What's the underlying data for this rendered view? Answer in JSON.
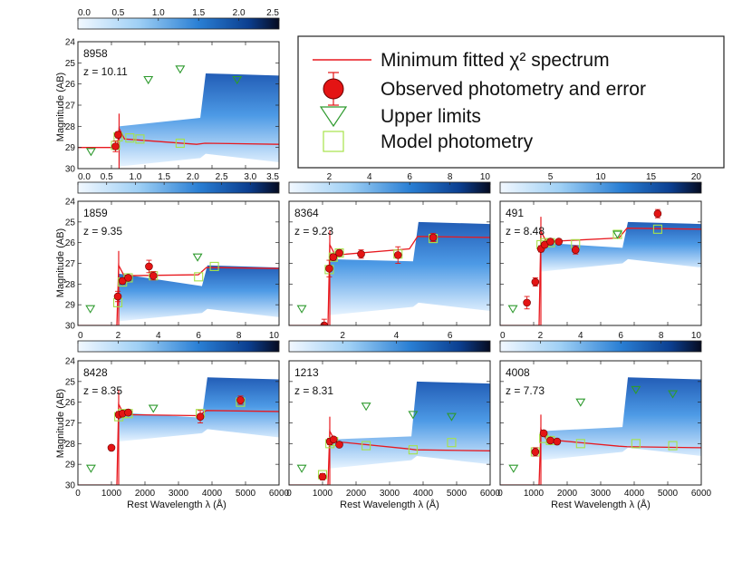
{
  "figure": {
    "y_axis_label": "Magnitude (AB)",
    "x_axis_label": "Rest Wavelength λ (Å)"
  },
  "legend": {
    "items": [
      {
        "kind": "line",
        "label": "Minimum fitted χ² spectrum"
      },
      {
        "kind": "filled-circle",
        "label": "Observed photometry and error"
      },
      {
        "kind": "down-triangle",
        "label": "Upper limits"
      },
      {
        "kind": "open-square",
        "label": "Model photometry"
      }
    ]
  },
  "colors": {
    "fit_line": "#e8191f",
    "observed": "#e41414",
    "upper_limit": "#2e9a2e",
    "model_phot": "#a6e24a",
    "colorbar_low": "#eaf4ff",
    "colorbar_high": "#0b1230"
  },
  "chart_data": [
    {
      "type": "scatter",
      "id": "8958",
      "z_label": "z = 10.11",
      "colorbar": {
        "range": [
          0,
          2.5
        ],
        "ticks": [
          "0.0",
          "0.5",
          "1.0",
          "1.5",
          "2.0",
          "2.5"
        ]
      },
      "xlim": [
        0,
        6000
      ],
      "ylim": [
        30,
        24
      ],
      "xticks": [],
      "yticks": [
        24,
        25,
        26,
        27,
        28,
        29,
        30
      ],
      "break": {
        "wave": 1228,
        "faint_mag": 29.0,
        "fan": [
          28.0,
          29.9
        ],
        "break2": 3650,
        "fan2": [
          25.5,
          26.4
        ],
        "fit_blue": 28.6,
        "fit_red": 28.8
      },
      "observed": [
        {
          "x": 1120,
          "y": 28.95,
          "err": 0.25
        },
        {
          "x": 1200,
          "y": 28.4,
          "err": 0.15
        }
      ],
      "upper_limits": [
        {
          "x": 390,
          "y": 29.2
        },
        {
          "x": 2100,
          "y": 25.8
        },
        {
          "x": 3050,
          "y": 25.3
        },
        {
          "x": 4750,
          "y": 25.8
        }
      ],
      "model": [
        {
          "x": 1120,
          "y": 28.9
        },
        {
          "x": 1200,
          "y": 28.5
        },
        {
          "x": 1550,
          "y": 28.55
        },
        {
          "x": 1850,
          "y": 28.6
        },
        {
          "x": 3050,
          "y": 28.8
        }
      ]
    },
    {
      "type": "scatter",
      "id": "1859",
      "z_label": "z = 9.35",
      "colorbar": {
        "range": [
          0,
          3.5
        ],
        "ticks": [
          "0.0",
          "0.5",
          "1.0",
          "1.5",
          "2.0",
          "2.5",
          "3.0",
          "3.5"
        ]
      },
      "xlim": [
        0,
        6000
      ],
      "ylim": [
        30,
        24
      ],
      "xticks": [],
      "yticks": [
        24,
        25,
        26,
        27,
        28,
        29,
        30
      ],
      "break": {
        "wave": 1216,
        "faint_mag": 30.0,
        "fan": [
          27.5,
          29.8
        ],
        "break2": 3700,
        "fan2": [
          27.1,
          27.9
        ],
        "fit_blue": 27.6,
        "fit_red": 27.2
      },
      "observed": [
        {
          "x": 1190,
          "y": 28.6,
          "err": 0.25
        },
        {
          "x": 1330,
          "y": 27.85,
          "err": 0.15
        },
        {
          "x": 1500,
          "y": 27.7,
          "err": 0.1
        },
        {
          "x": 2120,
          "y": 27.15,
          "err": 0.3
        },
        {
          "x": 2250,
          "y": 27.6,
          "err": 0.2
        }
      ],
      "upper_limits": [
        {
          "x": 370,
          "y": 29.2
        },
        {
          "x": 3570,
          "y": 26.7
        }
      ],
      "model": [
        {
          "x": 1190,
          "y": 28.9
        },
        {
          "x": 1330,
          "y": 27.9
        },
        {
          "x": 1500,
          "y": 27.7
        },
        {
          "x": 2250,
          "y": 27.6
        },
        {
          "x": 3600,
          "y": 27.65
        },
        {
          "x": 4070,
          "y": 27.15
        }
      ]
    },
    {
      "type": "scatter",
      "id": "8364",
      "z_label": "z = 9.23",
      "colorbar": {
        "range": [
          0,
          10
        ],
        "ticks": [
          "2",
          "4",
          "6",
          "8",
          "10"
        ]
      },
      "xlim": [
        0,
        6000
      ],
      "ylim": [
        30,
        24
      ],
      "xticks": [],
      "yticks": [],
      "break": {
        "wave": 1216,
        "faint_mag": 30.0,
        "fan": [
          26.8,
          29.5
        ],
        "break2": 3700,
        "fan2": [
          25.0,
          26.2
        ],
        "fit_blue": 26.6,
        "fit_red": 25.7
      },
      "observed": [
        {
          "x": 1050,
          "y": 30.0,
          "err": 0.3
        },
        {
          "x": 1200,
          "y": 27.25,
          "err": 0.4
        },
        {
          "x": 1320,
          "y": 26.7,
          "err": 0.15
        },
        {
          "x": 1500,
          "y": 26.5,
          "err": 0.15
        },
        {
          "x": 2150,
          "y": 26.55,
          "err": 0.2
        },
        {
          "x": 3250,
          "y": 26.6,
          "err": 0.4
        },
        {
          "x": 4300,
          "y": 25.75,
          "err": 0.2
        }
      ],
      "upper_limits": [
        {
          "x": 380,
          "y": 29.2
        }
      ],
      "model": [
        {
          "x": 1200,
          "y": 27.3
        },
        {
          "x": 1320,
          "y": 26.7
        },
        {
          "x": 1500,
          "y": 26.5
        },
        {
          "x": 3250,
          "y": 26.55
        },
        {
          "x": 4300,
          "y": 25.8
        }
      ]
    },
    {
      "type": "scatter",
      "id": "491",
      "z_label": "z = 8.48",
      "colorbar": {
        "range": [
          0,
          20
        ],
        "ticks": [
          "5",
          "10",
          "15",
          "20"
        ]
      },
      "xlim": [
        0,
        6000
      ],
      "ylim": [
        30,
        24
      ],
      "xticks": [],
      "yticks": [],
      "break": {
        "wave": 1216,
        "faint_mag": 30.0,
        "fan": [
          26.0,
          27.4
        ],
        "break2": 3650,
        "fan2": [
          25.0,
          25.7
        ],
        "fit_blue": 25.95,
        "fit_red": 25.3
      },
      "observed": [
        {
          "x": 800,
          "y": 28.9,
          "err": 0.3
        },
        {
          "x": 1050,
          "y": 27.9,
          "err": 0.2
        },
        {
          "x": 1220,
          "y": 26.3,
          "err": 0.15
        },
        {
          "x": 1330,
          "y": 26.1,
          "err": 0.1
        },
        {
          "x": 1500,
          "y": 25.95,
          "err": 0.1
        },
        {
          "x": 1750,
          "y": 25.95,
          "err": 0.1
        },
        {
          "x": 2250,
          "y": 26.35,
          "err": 0.2
        },
        {
          "x": 4700,
          "y": 24.6,
          "err": 0.2
        }
      ],
      "upper_limits": [
        {
          "x": 380,
          "y": 29.2
        },
        {
          "x": 3500,
          "y": 25.6
        }
      ],
      "model": [
        {
          "x": 1220,
          "y": 26.1
        },
        {
          "x": 1330,
          "y": 26.0
        },
        {
          "x": 1500,
          "y": 26.0
        },
        {
          "x": 2250,
          "y": 26.05
        },
        {
          "x": 3500,
          "y": 25.6
        },
        {
          "x": 4700,
          "y": 25.35
        }
      ]
    },
    {
      "type": "scatter",
      "id": "8428",
      "z_label": "z = 8.35",
      "colorbar": {
        "range": [
          0,
          10
        ],
        "ticks": [
          "0",
          "2",
          "4",
          "6",
          "8",
          "10"
        ]
      },
      "xlim": [
        0,
        6000
      ],
      "ylim": [
        30,
        24
      ],
      "xticks": [
        0,
        1000,
        2000,
        3000,
        4000,
        5000,
        6000
      ],
      "yticks": [
        24,
        25,
        26,
        27,
        28,
        29,
        30
      ],
      "break": {
        "wave": 1216,
        "faint_mag": 30.0,
        "fan": [
          26.5,
          27.9
        ],
        "break2": 3700,
        "fan2": [
          24.8,
          26.2
        ],
        "fit_blue": 26.6,
        "fit_red": 26.4
      },
      "observed": [
        {
          "x": 1000,
          "y": 28.2,
          "err": 0.1
        },
        {
          "x": 1220,
          "y": 26.6,
          "err": 0.15
        },
        {
          "x": 1330,
          "y": 26.55,
          "err": 0.1
        },
        {
          "x": 1500,
          "y": 26.5,
          "err": 0.1
        },
        {
          "x": 3650,
          "y": 26.7,
          "err": 0.3
        },
        {
          "x": 4850,
          "y": 25.9,
          "err": 0.2
        }
      ],
      "upper_limits": [
        {
          "x": 390,
          "y": 29.2
        },
        {
          "x": 2250,
          "y": 26.3
        }
      ],
      "model": [
        {
          "x": 1220,
          "y": 26.7
        },
        {
          "x": 1330,
          "y": 26.55
        },
        {
          "x": 1500,
          "y": 26.55
        },
        {
          "x": 3650,
          "y": 26.55
        },
        {
          "x": 4850,
          "y": 26.0
        }
      ]
    },
    {
      "type": "scatter",
      "id": "1213",
      "z_label": "z = 8.31",
      "colorbar": {
        "range": [
          0,
          7.5
        ],
        "ticks": [
          "2",
          "4",
          "6"
        ]
      },
      "xlim": [
        0,
        6000
      ],
      "ylim": [
        30,
        24
      ],
      "xticks": [
        0,
        1000,
        2000,
        3000,
        4000,
        5000,
        6000
      ],
      "yticks": [],
      "break": {
        "wave": 1216,
        "faint_mag": 30.0,
        "fan": [
          27.8,
          29.2
        ],
        "break2": 3650,
        "fan2": [
          25.0,
          26.7
        ],
        "fit_blue": 27.9,
        "fit_red": 28.3
      },
      "observed": [
        {
          "x": 1000,
          "y": 29.6,
          "err": 0.15
        },
        {
          "x": 1220,
          "y": 27.9,
          "err": 0.15
        },
        {
          "x": 1330,
          "y": 27.8,
          "err": 0.1
        },
        {
          "x": 1500,
          "y": 28.05,
          "err": 0.1
        }
      ],
      "upper_limits": [
        {
          "x": 380,
          "y": 29.2
        },
        {
          "x": 2300,
          "y": 26.2
        },
        {
          "x": 3700,
          "y": 26.6
        },
        {
          "x": 4850,
          "y": 26.7
        }
      ],
      "model": [
        {
          "x": 1000,
          "y": 29.5
        },
        {
          "x": 1220,
          "y": 28.0
        },
        {
          "x": 1330,
          "y": 27.9
        },
        {
          "x": 2300,
          "y": 28.1
        },
        {
          "x": 3700,
          "y": 28.3
        },
        {
          "x": 4850,
          "y": 27.95
        }
      ]
    },
    {
      "type": "scatter",
      "id": "4008",
      "z_label": "z = 7.73",
      "colorbar": {
        "range": [
          0,
          10
        ],
        "ticks": [
          "0",
          "2",
          "4",
          "6",
          "8",
          "10"
        ]
      },
      "xlim": [
        0,
        6000
      ],
      "ylim": [
        30,
        24
      ],
      "xticks": [
        0,
        1000,
        2000,
        3000,
        4000,
        5000,
        6000
      ],
      "yticks": [],
      "break": {
        "wave": 1216,
        "faint_mag": 30.0,
        "fan": [
          27.4,
          28.8
        ],
        "break2": 3650,
        "fan2": [
          24.8,
          26.2
        ],
        "fit_blue": 27.8,
        "fit_red": 28.15
      },
      "observed": [
        {
          "x": 1050,
          "y": 28.4,
          "err": 0.2
        },
        {
          "x": 1300,
          "y": 27.5,
          "err": 0.1
        },
        {
          "x": 1500,
          "y": 27.85,
          "err": 0.1
        },
        {
          "x": 1700,
          "y": 27.9,
          "err": 0.1
        }
      ],
      "upper_limits": [
        {
          "x": 400,
          "y": 29.2
        },
        {
          "x": 2400,
          "y": 26.0
        },
        {
          "x": 4050,
          "y": 25.4
        },
        {
          "x": 5150,
          "y": 25.6
        }
      ],
      "model": [
        {
          "x": 1050,
          "y": 28.4
        },
        {
          "x": 1300,
          "y": 27.75
        },
        {
          "x": 1500,
          "y": 27.85
        },
        {
          "x": 2400,
          "y": 28.0
        },
        {
          "x": 4050,
          "y": 28.0
        },
        {
          "x": 5150,
          "y": 28.1
        }
      ]
    }
  ]
}
